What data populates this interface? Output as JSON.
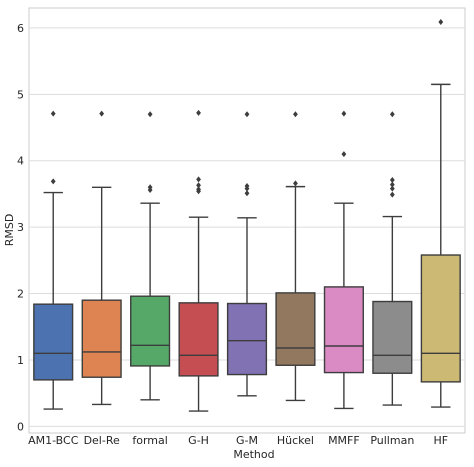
{
  "chart_data": {
    "type": "boxplot",
    "title": "",
    "xlabel": "Method",
    "ylabel": "RMSD",
    "ylim": [
      -0.1,
      6.3
    ],
    "yticks": [
      "0",
      "1",
      "2",
      "3",
      "4",
      "5",
      "6"
    ],
    "grid": "horizontal",
    "categories": [
      "AM1-BCC",
      "Del-Re",
      "formal",
      "G-H",
      "G-M",
      "Hückel",
      "MMFF",
      "Pullman",
      "HF"
    ],
    "colors": [
      "#4c72b0",
      "#dd8452",
      "#55a868",
      "#c44e52",
      "#8172b3",
      "#937860",
      "#da8bc3",
      "#8c8c8c",
      "#ccb974"
    ],
    "boxes": [
      {
        "whislo": 0.26,
        "q1": 0.7,
        "median": 1.1,
        "q3": 1.84,
        "whishi": 3.52,
        "fliers": [
          3.69,
          4.71
        ]
      },
      {
        "whislo": 0.33,
        "q1": 0.74,
        "median": 1.12,
        "q3": 1.9,
        "whishi": 3.6,
        "fliers": [
          4.71
        ]
      },
      {
        "whislo": 0.4,
        "q1": 0.91,
        "median": 1.22,
        "q3": 1.96,
        "whishi": 3.36,
        "fliers": [
          3.56,
          3.6,
          4.7
        ]
      },
      {
        "whislo": 0.23,
        "q1": 0.76,
        "median": 1.07,
        "q3": 1.86,
        "whishi": 3.15,
        "fliers": [
          3.54,
          3.57,
          3.63,
          3.72,
          4.72
        ]
      },
      {
        "whislo": 0.46,
        "q1": 0.78,
        "median": 1.29,
        "q3": 1.85,
        "whishi": 3.14,
        "fliers": [
          3.51,
          3.58,
          3.62,
          4.7
        ]
      },
      {
        "whislo": 0.39,
        "q1": 0.92,
        "median": 1.18,
        "q3": 2.01,
        "whishi": 3.61,
        "fliers": [
          3.66,
          4.7
        ]
      },
      {
        "whislo": 0.27,
        "q1": 0.81,
        "median": 1.21,
        "q3": 2.1,
        "whishi": 3.36,
        "fliers": [
          4.1,
          4.71
        ]
      },
      {
        "whislo": 0.32,
        "q1": 0.8,
        "median": 1.07,
        "q3": 1.88,
        "whishi": 3.16,
        "fliers": [
          3.49,
          3.58,
          3.64,
          3.71,
          4.7
        ]
      },
      {
        "whislo": 0.29,
        "q1": 0.67,
        "median": 1.1,
        "q3": 2.58,
        "whishi": 5.15,
        "fliers": [
          6.09
        ]
      }
    ]
  }
}
